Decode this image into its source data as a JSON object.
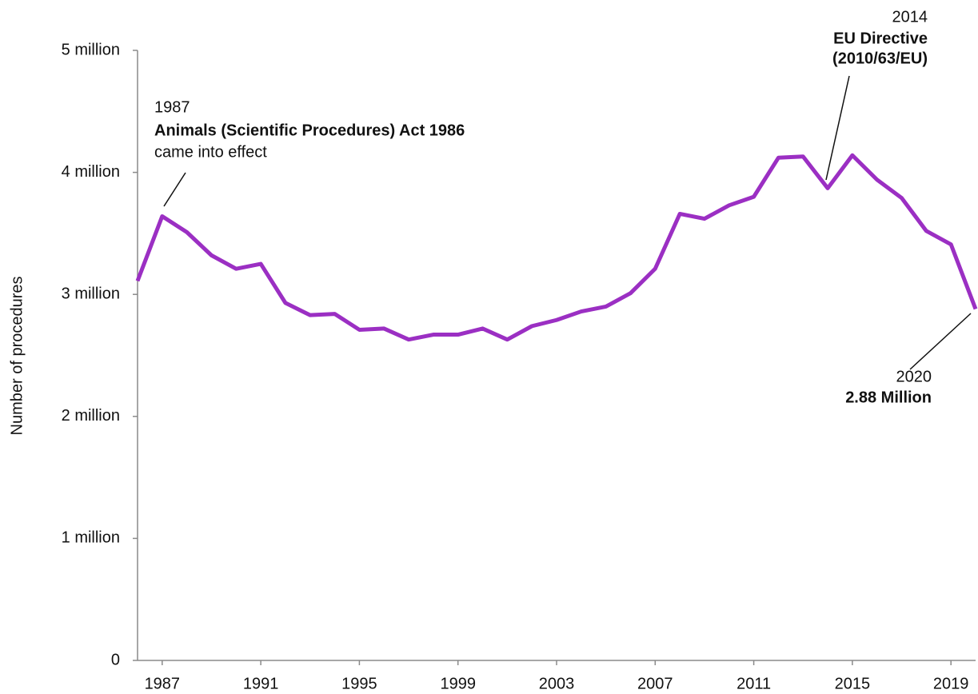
{
  "chart_data": {
    "type": "line",
    "y_label": "Number of procedures",
    "x": [
      1986,
      1987,
      1988,
      1989,
      1990,
      1991,
      1992,
      1993,
      1994,
      1995,
      1996,
      1997,
      1998,
      1999,
      2000,
      2001,
      2002,
      2003,
      2004,
      2005,
      2006,
      2007,
      2008,
      2009,
      2010,
      2011,
      2012,
      2013,
      2014,
      2015,
      2016,
      2017,
      2018,
      2019,
      2020
    ],
    "series": [
      {
        "name": "Procedures",
        "color": "#9b2fc3",
        "values": [
          3.11,
          3.64,
          3.51,
          3.32,
          3.21,
          3.25,
          2.93,
          2.83,
          2.84,
          2.71,
          2.72,
          2.63,
          2.67,
          2.67,
          2.72,
          2.63,
          2.74,
          2.79,
          2.86,
          2.9,
          3.01,
          3.21,
          3.66,
          3.62,
          3.73,
          3.8,
          4.12,
          4.13,
          3.87,
          4.14,
          3.94,
          3.79,
          3.52,
          3.41,
          2.88
        ]
      }
    ],
    "xlim": [
      1986,
      2020
    ],
    "xticks": [
      1987,
      1991,
      1995,
      1999,
      2003,
      2007,
      2011,
      2015,
      2019
    ],
    "ylim": [
      0,
      5
    ],
    "yticks": [
      0,
      {
        "value": 1,
        "label": "1 million"
      },
      {
        "value": 2,
        "label": "2 million"
      },
      {
        "value": 3,
        "label": "3 million"
      },
      {
        "value": 4,
        "label": "4 million"
      },
      {
        "value": 5,
        "label": "5 million"
      }
    ],
    "annotations": [
      {
        "lines": [
          "1987",
          "Animals (Scientific Procedures) Act 1986",
          "came into effect"
        ]
      },
      {
        "lines": [
          "2014",
          "EU Directive",
          "(2010/63/EU)"
        ]
      },
      {
        "lines": [
          "2020",
          "2.88 Million"
        ]
      }
    ]
  }
}
